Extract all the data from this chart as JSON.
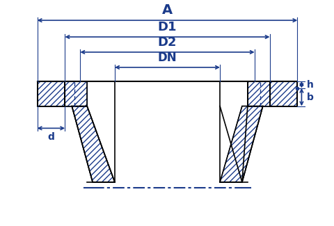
{
  "bg_color": "#ffffff",
  "draw_color": "#1a3a8a",
  "hatch_color": "#1a3a8a",
  "line_color": "#000000",
  "dim_color": "#1a3a8a",
  "figsize": [
    4.81,
    3.25
  ],
  "dpi": 100,
  "labels": {
    "A": "A",
    "D1": "D1",
    "D2": "D2",
    "DN": "DN",
    "h": "h",
    "b": "b",
    "d": "d"
  }
}
